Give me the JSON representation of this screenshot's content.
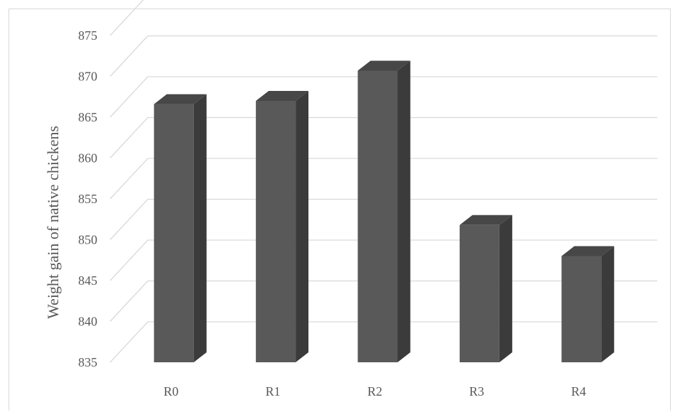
{
  "chart_data": {
    "type": "bar",
    "style": "3d-column",
    "title": "",
    "xlabel": "",
    "ylabel": "Weight gain of native  chickens",
    "categories": [
      "R0",
      "R1",
      "R2",
      "R3",
      "R4"
    ],
    "values": [
      866.6,
      867.0,
      870.7,
      851.8,
      848.0
    ],
    "ylim": [
      835,
      875
    ],
    "yticks": [
      835,
      840,
      845,
      850,
      855,
      860,
      865,
      870,
      875
    ],
    "grid": true,
    "legend": "none",
    "colors": {
      "bar_front": "#595959",
      "bar_side": "#3b3b3b",
      "bar_top": "#474747",
      "grid": "#d9d9d9",
      "text": "#595959"
    }
  }
}
